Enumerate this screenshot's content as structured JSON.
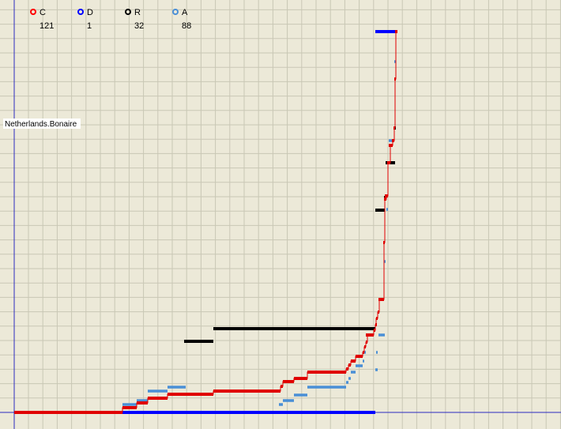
{
  "chart_data": {
    "type": "line",
    "grid": true,
    "xlabel": "",
    "ylabel": "",
    "region_label": "Netherlands.Bonaire",
    "legend": [
      {
        "key": "C",
        "count": "121",
        "color": "#ff0000"
      },
      {
        "key": "D",
        "count": "1",
        "color": "#0000ff"
      },
      {
        "key": "R",
        "count": "32",
        "color": "#000000"
      },
      {
        "key": "A",
        "count": "88",
        "color": "#4a8fd6"
      }
    ],
    "series": [
      {
        "key": "C",
        "color": "#e00000",
        "step_path": [
          [
            18,
            522
          ],
          [
            155,
            522
          ],
          [
            155,
            516
          ],
          [
            173,
            516
          ],
          [
            173,
            510
          ],
          [
            187,
            510
          ],
          [
            187,
            504
          ],
          [
            212,
            504
          ],
          [
            212,
            499
          ],
          [
            270,
            499
          ],
          [
            270,
            495
          ],
          [
            355,
            495
          ],
          [
            355,
            489
          ],
          [
            358,
            489
          ],
          [
            358,
            483
          ],
          [
            372,
            483
          ],
          [
            372,
            479
          ],
          [
            389,
            479
          ],
          [
            389,
            471
          ],
          [
            438,
            471
          ],
          [
            438,
            467
          ],
          [
            441,
            467
          ],
          [
            441,
            462
          ],
          [
            444,
            462
          ],
          [
            444,
            457
          ],
          [
            450,
            457
          ],
          [
            450,
            451
          ],
          [
            459,
            451
          ],
          [
            459,
            446
          ],
          [
            461,
            446
          ],
          [
            461,
            439
          ],
          [
            463,
            439
          ],
          [
            463,
            433
          ],
          [
            465,
            433
          ],
          [
            465,
            424
          ],
          [
            473,
            424
          ],
          [
            473,
            418
          ],
          [
            475,
            418
          ],
          [
            475,
            411
          ],
          [
            476,
            411
          ],
          [
            476,
            403
          ],
          [
            478,
            403
          ],
          [
            478,
            395
          ],
          [
            480,
            395
          ],
          [
            480,
            379
          ],
          [
            486,
            379
          ],
          [
            486,
            307
          ],
          [
            487,
            307
          ],
          [
            487,
            252
          ],
          [
            489,
            252
          ],
          [
            489,
            248
          ],
          [
            491,
            248
          ],
          [
            491,
            206
          ],
          [
            494,
            206
          ],
          [
            494,
            184
          ],
          [
            497,
            184
          ],
          [
            497,
            178
          ],
          [
            499,
            178
          ],
          [
            499,
            162
          ],
          [
            500,
            162
          ],
          [
            500,
            100
          ],
          [
            501,
            100
          ],
          [
            501,
            40
          ],
          [
            503,
            40
          ]
        ],
        "segments": [
          [
            18,
            155,
            522
          ],
          [
            155,
            173,
            516
          ],
          [
            173,
            187,
            510
          ],
          [
            187,
            212,
            504
          ],
          [
            212,
            270,
            499
          ],
          [
            270,
            355,
            495
          ],
          [
            355,
            358,
            489
          ],
          [
            358,
            372,
            483
          ],
          [
            372,
            389,
            479
          ],
          [
            389,
            438,
            471
          ],
          [
            438,
            441,
            467
          ],
          [
            441,
            444,
            462
          ],
          [
            444,
            450,
            457
          ],
          [
            450,
            459,
            451
          ],
          [
            459,
            461,
            446
          ],
          [
            461,
            463,
            439
          ],
          [
            463,
            465,
            433
          ],
          [
            463,
            473,
            424
          ],
          [
            473,
            475,
            418
          ],
          [
            475,
            476,
            411
          ],
          [
            476,
            478,
            403
          ],
          [
            478,
            480,
            395
          ],
          [
            479,
            486,
            379
          ],
          [
            485,
            487,
            307
          ],
          [
            486,
            489,
            252
          ],
          [
            487,
            491,
            248
          ],
          [
            490,
            494,
            206
          ],
          [
            492,
            497,
            184
          ],
          [
            496,
            499,
            178
          ],
          [
            498,
            500,
            162
          ],
          [
            499,
            501,
            100
          ],
          [
            500,
            503,
            40
          ]
        ]
      },
      {
        "key": "D",
        "color": "#0000ff",
        "segments": [
          [
            155,
            475,
            522
          ],
          [
            475,
            501,
            40
          ]
        ]
      },
      {
        "key": "R",
        "color": "#000000",
        "segments": [
          [
            233,
            270,
            432
          ],
          [
            270,
            475,
            416
          ],
          [
            475,
            487,
            266
          ],
          [
            486,
            489,
            250
          ],
          [
            488,
            500,
            206
          ],
          [
            499,
            501,
            162
          ]
        ]
      },
      {
        "key": "A",
        "color": "#4a8fd6",
        "segments": [
          [
            155,
            173,
            512
          ],
          [
            173,
            187,
            507
          ],
          [
            187,
            212,
            495
          ],
          [
            212,
            235,
            490
          ],
          [
            353,
            358,
            512
          ],
          [
            358,
            372,
            507
          ],
          [
            372,
            389,
            500
          ],
          [
            389,
            438,
            490
          ],
          [
            438,
            441,
            484
          ],
          [
            441,
            444,
            479
          ],
          [
            444,
            450,
            471
          ],
          [
            450,
            459,
            463
          ],
          [
            459,
            461,
            457
          ],
          [
            461,
            463,
            446
          ],
          [
            475,
            478,
            468
          ],
          [
            476,
            478,
            446
          ],
          [
            479,
            487,
            424
          ],
          [
            486,
            487,
            331
          ],
          [
            489,
            491,
            265
          ],
          [
            492,
            497,
            178
          ],
          [
            499,
            501,
            78
          ]
        ]
      }
    ]
  }
}
